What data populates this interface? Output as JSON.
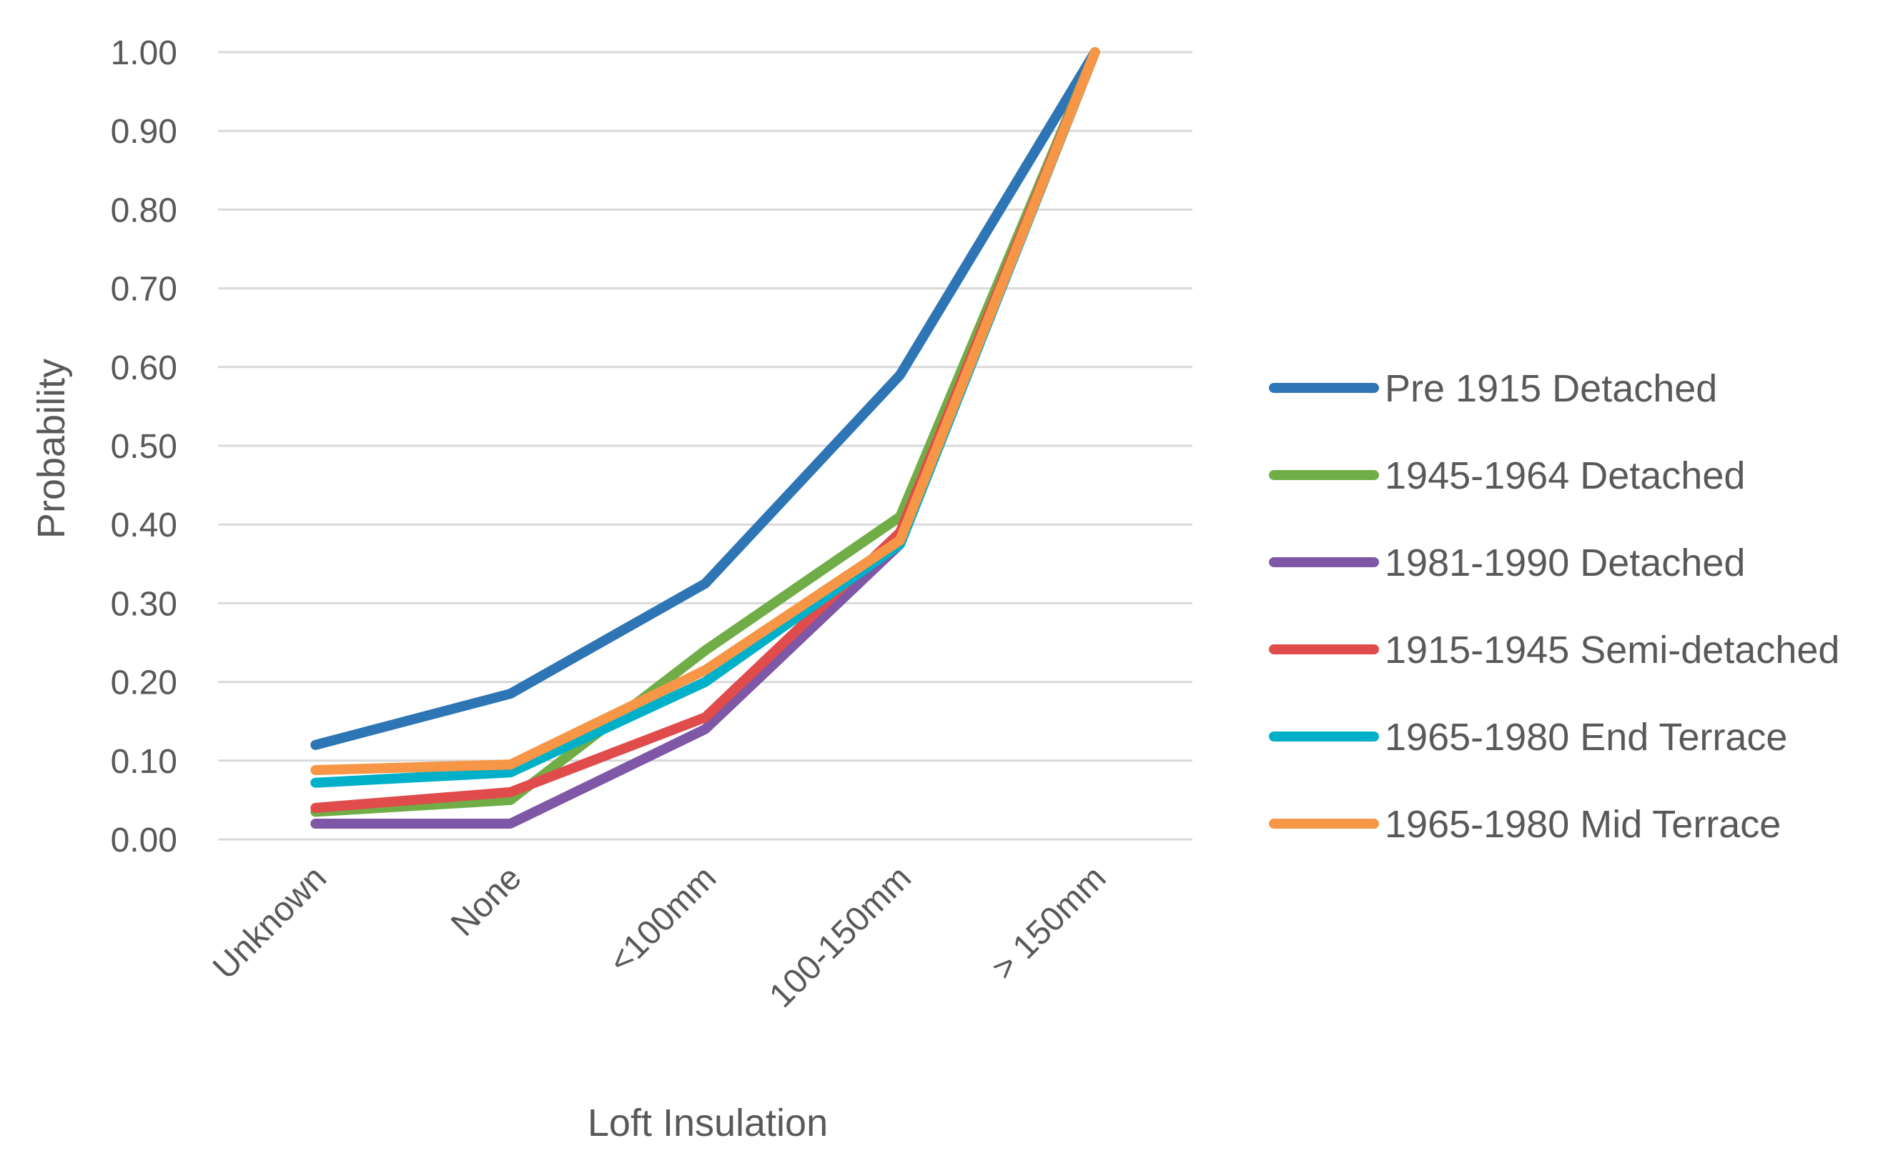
{
  "chart_data": {
    "type": "line",
    "title": "",
    "xlabel": "Loft Insulation",
    "ylabel": "Probability",
    "ylim": [
      0,
      1
    ],
    "yticks": [
      "0.00",
      "0.10",
      "0.20",
      "0.30",
      "0.40",
      "0.50",
      "0.60",
      "0.70",
      "0.80",
      "0.90",
      "1.00"
    ],
    "categories": [
      "Unknown",
      "None",
      "<100mm",
      "100-150mm",
      "> 150mm"
    ],
    "grid": true,
    "legend_position": "right",
    "series": [
      {
        "name": "Pre 1915 Detached",
        "color": "#2E75B6",
        "values": [
          0.12,
          0.185,
          0.325,
          0.59,
          1.0
        ]
      },
      {
        "name": "1945-1964 Detached",
        "color": "#70AD47",
        "values": [
          0.035,
          0.05,
          0.24,
          0.41,
          1.0
        ]
      },
      {
        "name": "1981-1990 Detached",
        "color": "#7E57A6",
        "values": [
          0.02,
          0.02,
          0.14,
          0.375,
          1.0
        ]
      },
      {
        "name": "1915-1945 Semi-detached",
        "color": "#E04B4B",
        "values": [
          0.04,
          0.06,
          0.155,
          0.39,
          1.0
        ]
      },
      {
        "name": "1965-1980 End Terrace",
        "color": "#00B0C8",
        "values": [
          0.072,
          0.085,
          0.2,
          0.375,
          1.0
        ]
      },
      {
        "name": "1965-1980 Mid Terrace",
        "color": "#F79646",
        "values": [
          0.088,
          0.095,
          0.215,
          0.38,
          1.0
        ]
      }
    ]
  }
}
